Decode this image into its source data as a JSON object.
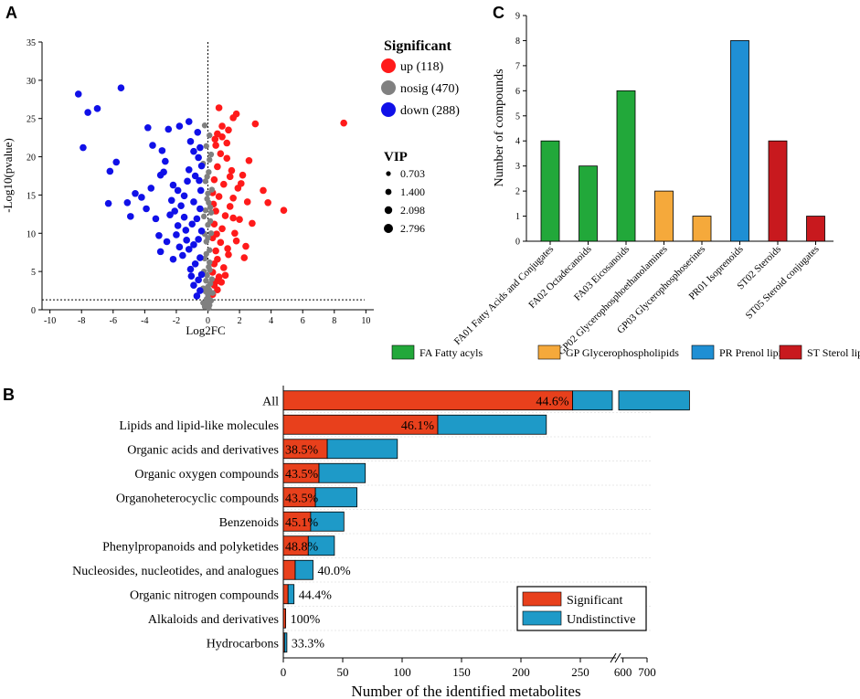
{
  "panels": {
    "a": "A",
    "b": "B",
    "c": "C"
  },
  "chart_data": [
    {
      "type": "scatter",
      "name": "volcano",
      "xlabel": "Log2FC",
      "ylabel": "-Log10(pvalue)",
      "xlim": [
        -10.5,
        10.5
      ],
      "ylim": [
        0,
        35
      ],
      "xticks": [
        -10,
        -8,
        -6,
        -4,
        -2,
        0,
        2,
        4,
        6,
        8,
        10
      ],
      "yticks": [
        0,
        5,
        10,
        15,
        20,
        25,
        30,
        35
      ],
      "threshold_y": 1.3,
      "threshold_x": 0,
      "legend": {
        "title": "Significant",
        "entries": [
          {
            "label": "up (118)",
            "color": "#ff1a1a"
          },
          {
            "label": "nosig (470)",
            "color": "#808080"
          },
          {
            "label": "down (288)",
            "color": "#1010e8"
          }
        ]
      },
      "size_legend": {
        "title": "VIP",
        "labels": [
          "0.703",
          "1.400",
          "2.098",
          "2.796"
        ]
      },
      "series": [
        {
          "name": "up",
          "color": "#ff1a1a",
          "points": [
            [
              8.6,
              24.4
            ],
            [
              3.0,
              24.3
            ],
            [
              1.8,
              25.6
            ],
            [
              1.6,
              25.1
            ],
            [
              0.7,
              26.4
            ],
            [
              1.3,
              23.5
            ],
            [
              0.9,
              22.6
            ],
            [
              3.5,
              15.6
            ],
            [
              4.8,
              13.0
            ],
            [
              3.8,
              14.0
            ],
            [
              0.5,
              21.5
            ],
            [
              0.8,
              20.4
            ],
            [
              1.2,
              19.8
            ],
            [
              0.6,
              18.7
            ],
            [
              1.5,
              18.2
            ],
            [
              2.2,
              17.6
            ],
            [
              0.4,
              17.0
            ],
            [
              1.0,
              16.4
            ],
            [
              1.9,
              15.9
            ],
            [
              0.3,
              15.3
            ],
            [
              0.7,
              14.8
            ],
            [
              2.5,
              14.1
            ],
            [
              1.4,
              13.5
            ],
            [
              0.5,
              12.9
            ],
            [
              1.1,
              12.3
            ],
            [
              2.0,
              11.8
            ],
            [
              0.4,
              11.2
            ],
            [
              0.9,
              10.6
            ],
            [
              1.7,
              10.0
            ],
            [
              0.3,
              9.4
            ],
            [
              0.8,
              8.8
            ],
            [
              2.4,
              8.3
            ],
            [
              0.5,
              7.7
            ],
            [
              1.3,
              7.2
            ],
            [
              0.6,
              6.6
            ],
            [
              0.4,
              6.0
            ],
            [
              1.0,
              5.5
            ],
            [
              0.3,
              4.9
            ],
            [
              0.7,
              4.3
            ],
            [
              0.5,
              3.7
            ],
            [
              0.4,
              3.2
            ],
            [
              0.6,
              2.6
            ],
            [
              0.3,
              2.0
            ],
            [
              1.6,
              12.0
            ],
            [
              2.6,
              19.5
            ],
            [
              1.2,
              21.8
            ],
            [
              0.9,
              24.0
            ],
            [
              2.1,
              16.5
            ],
            [
              1.8,
              9.0
            ],
            [
              2.3,
              6.8
            ],
            [
              0.6,
              23.0
            ],
            [
              1.4,
              17.4
            ],
            [
              0.35,
              13.8
            ],
            [
              1.1,
              4.5
            ],
            [
              0.45,
              22.3
            ],
            [
              1.6,
              14.6
            ],
            [
              2.8,
              11.3
            ],
            [
              0.55,
              9.9
            ],
            [
              1.25,
              8.0
            ],
            [
              0.85,
              3.6
            ]
          ]
        },
        {
          "name": "nosig",
          "color": "#808080",
          "points": [
            [
              -0.2,
              24.1
            ],
            [
              0.1,
              22.8
            ],
            [
              -0.1,
              21.4
            ],
            [
              0.2,
              20.3
            ],
            [
              -0.3,
              19.1
            ],
            [
              0.05,
              18.0
            ],
            [
              -0.15,
              16.8
            ],
            [
              0.25,
              15.7
            ],
            [
              -0.05,
              14.5
            ],
            [
              0.15,
              13.4
            ],
            [
              -0.25,
              12.2
            ],
            [
              0.0,
              11.1
            ],
            [
              0.2,
              10.0
            ],
            [
              -0.1,
              8.9
            ],
            [
              0.1,
              7.8
            ],
            [
              -0.2,
              6.7
            ],
            [
              0.05,
              5.6
            ],
            [
              -0.05,
              4.5
            ],
            [
              0.15,
              3.4
            ],
            [
              -0.15,
              2.4
            ],
            [
              0.0,
              1.6
            ],
            [
              -0.1,
              1.0
            ],
            [
              0.1,
              0.6
            ],
            [
              0.05,
              0.2
            ],
            [
              -0.05,
              0.8
            ],
            [
              0.2,
              1.2
            ],
            [
              -0.2,
              0.4
            ],
            [
              0.0,
              3.0
            ],
            [
              0.25,
              4.0
            ],
            [
              -0.25,
              5.0
            ],
            [
              0.1,
              6.2
            ],
            [
              -0.1,
              7.3
            ],
            [
              0.0,
              9.4
            ],
            [
              0.15,
              11.6
            ],
            [
              -0.15,
              13.0
            ],
            [
              0.05,
              14.0
            ],
            [
              -0.05,
              17.4
            ],
            [
              0.1,
              19.6
            ],
            [
              -0.3,
              2.8
            ],
            [
              0.3,
              2.2
            ],
            [
              0.0,
              2.0
            ],
            [
              -0.12,
              3.8
            ],
            [
              0.12,
              5.2
            ],
            [
              -0.2,
              9.9
            ],
            [
              0.2,
              12.7
            ],
            [
              0.0,
              15.2
            ],
            [
              0.05,
              0.5
            ],
            [
              -0.08,
              1.4
            ],
            [
              0.08,
              2.6
            ],
            [
              -0.3,
              0.9
            ]
          ]
        },
        {
          "name": "down",
          "color": "#1010e8",
          "points": [
            [
              -8.2,
              28.2
            ],
            [
              -7.6,
              25.8
            ],
            [
              -7.0,
              26.3
            ],
            [
              -5.5,
              29.0
            ],
            [
              -7.9,
              21.2
            ],
            [
              -3.8,
              23.8
            ],
            [
              -3.5,
              21.5
            ],
            [
              -2.9,
              20.8
            ],
            [
              -2.5,
              23.6
            ],
            [
              -1.8,
              24.0
            ],
            [
              -1.2,
              24.6
            ],
            [
              -5.8,
              19.3
            ],
            [
              -6.2,
              18.1
            ],
            [
              -4.6,
              15.2
            ],
            [
              -4.2,
              14.7
            ],
            [
              -3.9,
              13.2
            ],
            [
              -4.9,
              12.2
            ],
            [
              -6.3,
              13.9
            ],
            [
              -5.1,
              14.0
            ],
            [
              -3.3,
              11.9
            ],
            [
              -3.0,
              17.6
            ],
            [
              -2.7,
              19.4
            ],
            [
              -2.2,
              16.3
            ],
            [
              -1.9,
              15.6
            ],
            [
              -1.5,
              14.9
            ],
            [
              -1.1,
              22.0
            ],
            [
              -0.9,
              20.7
            ],
            [
              -0.6,
              19.9
            ],
            [
              -0.4,
              18.8
            ],
            [
              -0.8,
              17.5
            ],
            [
              -1.3,
              16.8
            ],
            [
              -1.7,
              13.6
            ],
            [
              -2.1,
              12.9
            ],
            [
              -2.4,
              12.4
            ],
            [
              -0.5,
              13.2
            ],
            [
              -0.7,
              11.9
            ],
            [
              -1.0,
              11.2
            ],
            [
              -1.4,
              10.4
            ],
            [
              -2.0,
              9.8
            ],
            [
              -2.6,
              8.9
            ],
            [
              -0.4,
              10.3
            ],
            [
              -0.6,
              9.2
            ],
            [
              -0.9,
              8.5
            ],
            [
              -1.2,
              7.9
            ],
            [
              -1.6,
              7.1
            ],
            [
              -0.5,
              6.8
            ],
            [
              -0.8,
              6.0
            ],
            [
              -1.1,
              5.3
            ],
            [
              -0.4,
              4.6
            ],
            [
              -0.6,
              3.9
            ],
            [
              -0.9,
              3.2
            ],
            [
              -0.5,
              2.5
            ],
            [
              -0.7,
              1.8
            ],
            [
              -1.9,
              11.0
            ],
            [
              -3.1,
              9.7
            ],
            [
              -2.3,
              14.3
            ],
            [
              -1.2,
              18.3
            ],
            [
              -0.5,
              21.2
            ],
            [
              -2.8,
              18.0
            ],
            [
              -3.6,
              15.9
            ],
            [
              -0.9,
              14.1
            ],
            [
              -1.5,
              12.1
            ],
            [
              -0.45,
              15.6
            ],
            [
              -1.8,
              8.2
            ],
            [
              -2.2,
              6.6
            ],
            [
              -0.65,
              23.2
            ],
            [
              -1.35,
              9.1
            ],
            [
              -3.0,
              7.6
            ],
            [
              -0.55,
              16.9
            ],
            [
              -1.05,
              4.4
            ]
          ]
        }
      ]
    },
    {
      "type": "bar",
      "name": "compound-classes",
      "ylabel": "Number of compounds",
      "ylim": [
        0,
        9
      ],
      "yticks": [
        0,
        1,
        2,
        3,
        4,
        5,
        6,
        7,
        8,
        9
      ],
      "categories": [
        "FA01 Fatty Acids and Conjugates",
        "FA02 Octadecanoids",
        "FA03 Eicosanoids",
        "GP02 Glycerophosphoethanolamines",
        "GP03 Glycerophosphoserines",
        "PR01 Isoprenoids",
        "ST02 Steroids",
        "ST05 Steroid conjugates"
      ],
      "values": [
        4,
        3,
        6,
        2,
        1,
        8,
        4,
        1
      ],
      "groups": [
        "FA",
        "FA",
        "FA",
        "GP",
        "GP",
        "PR",
        "ST",
        "ST"
      ],
      "legend": [
        {
          "key": "FA",
          "label": "FA Fatty acyls",
          "color": "#22a83a"
        },
        {
          "key": "GP",
          "label": "GP Glycerophospholipids",
          "color": "#f5a93b"
        },
        {
          "key": "PR",
          "label": "PR Prenol lipids",
          "color": "#1f8fd4"
        },
        {
          "key": "ST",
          "label": "ST Sterol lipids",
          "color": "#c8191e"
        }
      ]
    },
    {
      "type": "bar",
      "orientation": "horizontal",
      "stacked": true,
      "name": "metabolite-classes",
      "xlabel": "Number of the identified metabolites",
      "xticks": [
        "0",
        "50",
        "100",
        "150",
        "200",
        "250",
        "600",
        "700"
      ],
      "axis_break": [
        280,
        590
      ],
      "categories": [
        "All",
        "Lipids and lipid-like molecules",
        "Organic acids and derivatives",
        "Organic oxygen compounds",
        "Organoheterocyclic compounds",
        "Benzenoids",
        "Phenylpropanoids and polyketides",
        "Nucleosides, nucleotides, and analogues",
        "Organic nitrogen compounds",
        "Alkaloids and derivatives",
        "Hydrocarbons"
      ],
      "series": [
        {
          "name": "Significant",
          "color": "#e8401c",
          "values": [
            391,
            130,
            37,
            30,
            27,
            23,
            21,
            10,
            4,
            2,
            1
          ]
        },
        {
          "name": "Undistinctive",
          "color": "#1e9ac8",
          "values": [
            485,
            152,
            59,
            39,
            35,
            28,
            22,
            15,
            5,
            0,
            2
          ]
        }
      ],
      "percent_labels": [
        "44.6%",
        "46.1%",
        "38.5%",
        "43.5%",
        "43.5%",
        "45.1%",
        "48.8%",
        "40.0%",
        "44.4%",
        "100%",
        "33.3%"
      ]
    }
  ]
}
